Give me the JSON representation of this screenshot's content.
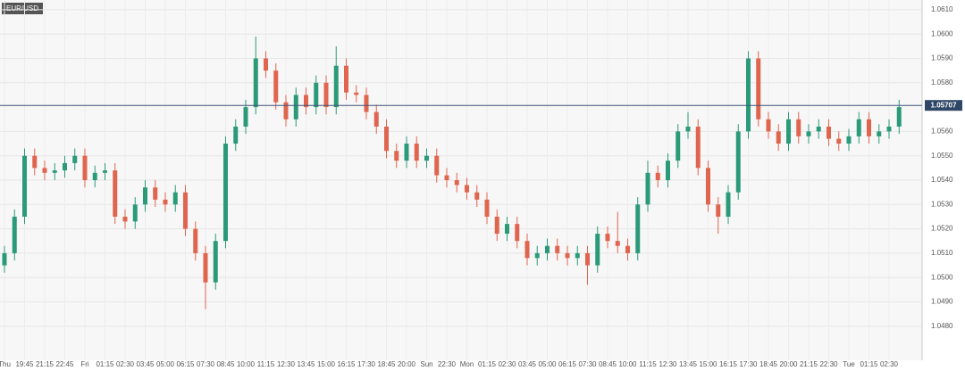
{
  "chart_data": {
    "type": "candlestick",
    "title": "EUR/USD",
    "categories": [
      "Thu",
      null,
      "19:45",
      null,
      "21:15",
      null,
      "22:45",
      null,
      "Fri",
      null,
      "01:15",
      null,
      "02:30",
      null,
      "03:45",
      null,
      "05:00",
      null,
      "06:15",
      null,
      "07:30",
      null,
      "08:45",
      null,
      "10:00",
      null,
      "11:15",
      null,
      "12:30",
      null,
      "13:45",
      null,
      "15:00",
      null,
      "16:15",
      null,
      "17:30",
      null,
      "18:45",
      null,
      "20:00",
      null,
      "Sun",
      null,
      "22:30",
      null,
      "Mon",
      null,
      "01:15",
      null,
      "02:30",
      null,
      "03:45",
      null,
      "05:00",
      null,
      "06:15",
      null,
      "07:30",
      null,
      "08:45",
      null,
      "10:00",
      null,
      "11:15",
      null,
      "12:30",
      null,
      "13:45",
      null,
      "15:00",
      null,
      "16:15",
      null,
      "17:30",
      null,
      "18:45",
      null,
      "20:00",
      null,
      "21:15",
      null,
      "22:30",
      null,
      "Tue",
      null,
      "01:15",
      null,
      "02:30",
      null
    ],
    "open": [
      1.0505,
      1.051,
      1.0525,
      1.055,
      1.0545,
      1.0543,
      1.0544,
      1.0547,
      1.055,
      1.054,
      1.0543,
      1.0544,
      1.0525,
      1.0523,
      1.053,
      1.0537,
      1.0532,
      1.053,
      1.0535,
      1.052,
      1.051,
      1.0498,
      1.0515,
      1.0555,
      1.0562,
      1.057,
      1.059,
      1.0585,
      1.0572,
      1.0565,
      1.0575,
      1.057,
      1.058,
      1.057,
      1.0587,
      1.0576,
      1.0575,
      1.0568,
      1.0562,
      1.0552,
      1.0548,
      1.0555,
      1.0548,
      1.055,
      1.0542,
      1.054,
      1.0538,
      1.0535,
      1.0532,
      1.0525,
      1.0518,
      1.0522,
      1.0515,
      1.0508,
      1.051,
      1.0513,
      1.051,
      1.0508,
      1.051,
      1.0505,
      1.0518,
      1.0515,
      1.0513,
      1.051,
      1.053,
      1.0543,
      1.054,
      1.0548,
      1.056,
      1.0562,
      1.0545,
      1.053,
      1.0525,
      1.0535,
      1.056,
      1.059,
      1.0565,
      1.056,
      1.0555,
      1.0565,
      1.0558,
      1.056,
      1.0562,
      1.0557,
      1.0555,
      1.0558,
      1.0565,
      1.0558,
      1.056,
      1.0562
    ],
    "high": [
      1.0513,
      1.0528,
      1.0553,
      1.0553,
      1.0548,
      1.0547,
      1.055,
      1.0553,
      1.0553,
      1.0546,
      1.0547,
      1.0547,
      1.0528,
      1.0533,
      1.054,
      1.054,
      1.0535,
      1.0538,
      1.0538,
      1.0523,
      1.0513,
      1.0518,
      1.0558,
      1.0565,
      1.0573,
      1.0599,
      1.0593,
      1.0588,
      1.0575,
      1.0578,
      1.0578,
      1.0583,
      1.0583,
      1.0595,
      1.059,
      1.0579,
      1.0578,
      1.0571,
      1.0565,
      1.0555,
      1.0558,
      1.0558,
      1.0553,
      1.0553,
      1.0545,
      1.0543,
      1.0541,
      1.0538,
      1.0535,
      1.0528,
      1.0525,
      1.0525,
      1.0518,
      1.0513,
      1.0516,
      1.0516,
      1.0513,
      1.0513,
      1.0513,
      1.0521,
      1.0521,
      1.0527,
      1.0516,
      1.0533,
      1.0548,
      1.0546,
      1.0551,
      1.0563,
      1.0568,
      1.0565,
      1.0548,
      1.0533,
      1.0538,
      1.0563,
      1.0593,
      1.0593,
      1.0568,
      1.0563,
      1.0568,
      1.0568,
      1.0563,
      1.0565,
      1.0565,
      1.056,
      1.0561,
      1.0568,
      1.0568,
      1.0563,
      1.0565,
      1.0573
    ],
    "low": [
      1.0502,
      1.0507,
      1.0522,
      1.0542,
      1.054,
      1.054,
      1.0541,
      1.0544,
      1.0537,
      1.0537,
      1.054,
      1.0522,
      1.052,
      1.052,
      1.0527,
      1.0529,
      1.0527,
      1.0527,
      1.0517,
      1.0507,
      1.0487,
      1.0495,
      1.0512,
      1.0552,
      1.0559,
      1.0567,
      1.0582,
      1.0569,
      1.0562,
      1.0562,
      1.0567,
      1.0567,
      1.0567,
      1.0567,
      1.0573,
      1.0572,
      1.0565,
      1.0559,
      1.0549,
      1.0545,
      1.0545,
      1.0545,
      1.0545,
      1.0539,
      1.0537,
      1.0535,
      1.0532,
      1.0529,
      1.0522,
      1.0515,
      1.0515,
      1.0512,
      1.0505,
      1.0505,
      1.0507,
      1.0507,
      1.0505,
      1.0505,
      1.0497,
      1.0502,
      1.0512,
      1.051,
      1.0507,
      1.0507,
      1.0527,
      1.0537,
      1.0537,
      1.0545,
      1.0557,
      1.0542,
      1.0527,
      1.0518,
      1.0522,
      1.0532,
      1.0557,
      1.0562,
      1.0557,
      1.0552,
      1.0552,
      1.0555,
      1.0555,
      1.0557,
      1.0554,
      1.0552,
      1.0552,
      1.0555,
      1.0555,
      1.0555,
      1.0557,
      1.0559
    ],
    "close": [
      1.051,
      1.0525,
      1.055,
      1.0545,
      1.0543,
      1.0544,
      1.0547,
      1.055,
      1.054,
      1.0543,
      1.0544,
      1.0525,
      1.0523,
      1.053,
      1.0537,
      1.0532,
      1.053,
      1.0535,
      1.052,
      1.051,
      1.0498,
      1.0515,
      1.0555,
      1.0562,
      1.057,
      1.059,
      1.0585,
      1.0572,
      1.0565,
      1.0575,
      1.057,
      1.058,
      1.057,
      1.0587,
      1.0576,
      1.0575,
      1.0568,
      1.0562,
      1.0552,
      1.0548,
      1.0555,
      1.0548,
      1.055,
      1.0542,
      1.054,
      1.0538,
      1.0535,
      1.0532,
      1.0525,
      1.0518,
      1.0522,
      1.0515,
      1.0508,
      1.051,
      1.0513,
      1.051,
      1.0508,
      1.051,
      1.0505,
      1.0518,
      1.0515,
      1.0513,
      1.051,
      1.053,
      1.0543,
      1.054,
      1.0548,
      1.056,
      1.0562,
      1.0545,
      1.053,
      1.0525,
      1.0535,
      1.056,
      1.059,
      1.0565,
      1.056,
      1.0555,
      1.0565,
      1.0558,
      1.056,
      1.0562,
      1.0557,
      1.0555,
      1.0558,
      1.0565,
      1.0558,
      1.056,
      1.0562,
      1.057
    ],
    "up_color": "#2b9a78",
    "down_color": "#e0654f",
    "ylim": [
      1.0466,
      1.0614
    ],
    "yticks": [
      {
        "value": 1.048,
        "label": "1.0480"
      },
      {
        "value": 1.049,
        "label": "1.0490"
      },
      {
        "value": 1.05,
        "label": "1.0500"
      },
      {
        "value": 1.051,
        "label": "1.0510"
      },
      {
        "value": 1.052,
        "label": "1.0520"
      },
      {
        "value": 1.053,
        "label": "1.0530"
      },
      {
        "value": 1.054,
        "label": "1.0540"
      },
      {
        "value": 1.055,
        "label": "1.0550"
      },
      {
        "value": 1.056,
        "label": "1.0560"
      },
      {
        "value": 1.058,
        "label": "1.0580"
      },
      {
        "value": 1.059,
        "label": "1.0590"
      },
      {
        "value": 1.06,
        "label": "1.0600"
      },
      {
        "value": 1.061,
        "label": "1.0610"
      }
    ],
    "last_price": 1.05707,
    "grid": true
  }
}
